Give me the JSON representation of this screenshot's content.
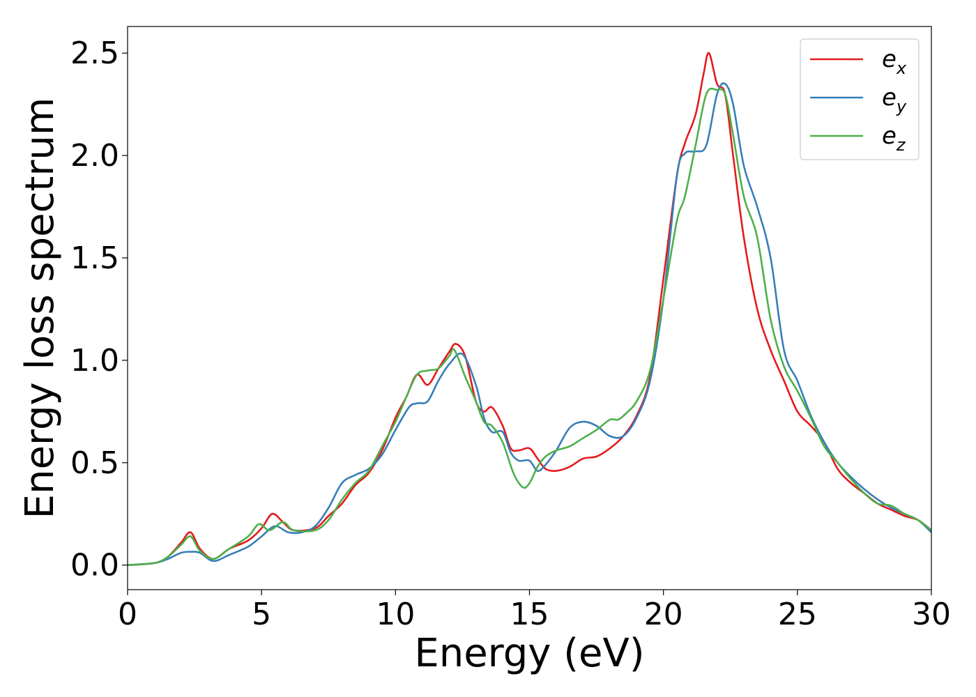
{
  "chart_data": {
    "type": "line",
    "title": "",
    "xlabel": "Energy (eV)",
    "ylabel": "Energy loss spectrum",
    "xlim": [
      0,
      30
    ],
    "ylim": [
      -0.12,
      2.63
    ],
    "xticks": [
      0,
      5,
      10,
      15,
      20,
      25,
      30
    ],
    "xtick_labels": [
      "0",
      "5",
      "10",
      "15",
      "20",
      "25",
      "30"
    ],
    "yticks": [
      0.0,
      0.5,
      1.0,
      1.5,
      2.0,
      2.5
    ],
    "ytick_labels": [
      "0.0",
      "0.5",
      "1.0",
      "1.5",
      "2.0",
      "2.5"
    ],
    "grid": false,
    "legend_position": "top-right",
    "series": [
      {
        "name": "e_x",
        "label_base": "e",
        "label_sub": "x",
        "color": "#e41a1c",
        "x": [
          0,
          1.0,
          1.5,
          2.0,
          2.35,
          2.7,
          3.2,
          3.8,
          4.5,
          5.0,
          5.4,
          5.8,
          6.2,
          7.0,
          7.5,
          8.0,
          8.5,
          9.0,
          9.5,
          10.0,
          10.4,
          10.8,
          11.2,
          11.6,
          12.0,
          12.25,
          12.6,
          13.0,
          13.3,
          13.6,
          14.0,
          14.3,
          14.6,
          15.0,
          15.3,
          15.6,
          16.0,
          16.5,
          17.0,
          17.5,
          18.0,
          18.5,
          19.0,
          19.5,
          20.0,
          20.5,
          20.8,
          21.2,
          21.5,
          21.7,
          22.0,
          22.3,
          22.6,
          23.0,
          23.5,
          24.0,
          24.5,
          25.0,
          25.5,
          26.0,
          26.5,
          27.0,
          27.5,
          28.0,
          28.5,
          29.0,
          29.5,
          30.0
        ],
        "y": [
          0.0,
          0.01,
          0.04,
          0.11,
          0.16,
          0.08,
          0.03,
          0.08,
          0.12,
          0.18,
          0.25,
          0.21,
          0.17,
          0.18,
          0.24,
          0.3,
          0.39,
          0.45,
          0.56,
          0.72,
          0.82,
          0.93,
          0.88,
          0.96,
          1.04,
          1.08,
          1.02,
          0.8,
          0.75,
          0.77,
          0.68,
          0.57,
          0.56,
          0.57,
          0.52,
          0.47,
          0.46,
          0.48,
          0.52,
          0.53,
          0.57,
          0.63,
          0.73,
          0.92,
          1.4,
          1.9,
          2.06,
          2.2,
          2.4,
          2.5,
          2.35,
          2.3,
          2.0,
          1.6,
          1.25,
          1.05,
          0.9,
          0.75,
          0.68,
          0.6,
          0.47,
          0.4,
          0.35,
          0.3,
          0.27,
          0.24,
          0.22,
          0.17
        ]
      },
      {
        "name": "e_y",
        "label_base": "e",
        "label_sub": "y",
        "color": "#377eb8",
        "x": [
          0,
          1.0,
          1.5,
          2.0,
          2.35,
          2.7,
          3.2,
          3.8,
          4.5,
          5.0,
          5.5,
          6.0,
          6.5,
          7.0,
          7.5,
          8.0,
          8.5,
          9.0,
          9.5,
          10.0,
          10.5,
          10.8,
          11.2,
          11.6,
          12.0,
          12.5,
          13.0,
          13.3,
          13.6,
          14.0,
          14.3,
          14.6,
          15.0,
          15.3,
          15.6,
          16.0,
          16.5,
          17.0,
          17.5,
          18.0,
          18.5,
          19.0,
          19.5,
          20.0,
          20.5,
          20.8,
          21.2,
          21.6,
          22.0,
          22.3,
          22.6,
          23.0,
          23.5,
          24.0,
          24.5,
          25.0,
          25.5,
          26.0,
          26.5,
          27.0,
          27.5,
          28.0,
          28.5,
          29.0,
          29.5,
          30.0
        ],
        "y": [
          0.0,
          0.01,
          0.03,
          0.06,
          0.065,
          0.06,
          0.02,
          0.05,
          0.09,
          0.14,
          0.19,
          0.16,
          0.16,
          0.19,
          0.28,
          0.4,
          0.44,
          0.47,
          0.54,
          0.66,
          0.77,
          0.79,
          0.8,
          0.9,
          0.98,
          1.03,
          0.88,
          0.72,
          0.65,
          0.65,
          0.55,
          0.51,
          0.51,
          0.46,
          0.49,
          0.56,
          0.67,
          0.7,
          0.68,
          0.63,
          0.63,
          0.72,
          0.9,
          1.3,
          1.9,
          2.01,
          2.02,
          2.05,
          2.3,
          2.35,
          2.25,
          1.95,
          1.75,
          1.5,
          1.05,
          0.9,
          0.73,
          0.6,
          0.5,
          0.43,
          0.37,
          0.32,
          0.28,
          0.25,
          0.22,
          0.16
        ]
      },
      {
        "name": "e_z",
        "label_base": "e",
        "label_sub": "z",
        "color": "#4daf4a",
        "x": [
          0,
          1.0,
          1.5,
          2.0,
          2.35,
          2.7,
          3.2,
          3.8,
          4.5,
          4.9,
          5.3,
          5.8,
          6.2,
          7.0,
          7.5,
          8.0,
          8.5,
          9.0,
          9.5,
          10.0,
          10.4,
          10.8,
          11.2,
          11.6,
          12.0,
          12.2,
          12.6,
          13.0,
          13.3,
          13.6,
          14.0,
          14.4,
          14.75,
          15.0,
          15.3,
          15.6,
          16.0,
          16.5,
          17.0,
          17.5,
          18.0,
          18.3,
          18.6,
          19.0,
          19.5,
          20.0,
          20.5,
          20.8,
          21.2,
          21.6,
          22.0,
          22.3,
          22.6,
          23.0,
          23.5,
          24.0,
          24.5,
          25.0,
          25.5,
          26.0,
          26.5,
          27.0,
          27.5,
          28.0,
          28.5,
          29.0,
          29.5,
          30.0
        ],
        "y": [
          0.0,
          0.01,
          0.04,
          0.1,
          0.14,
          0.07,
          0.03,
          0.08,
          0.14,
          0.2,
          0.17,
          0.21,
          0.17,
          0.17,
          0.22,
          0.32,
          0.4,
          0.46,
          0.58,
          0.7,
          0.82,
          0.93,
          0.95,
          0.96,
          1.02,
          1.05,
          0.92,
          0.8,
          0.7,
          0.68,
          0.6,
          0.45,
          0.38,
          0.4,
          0.48,
          0.53,
          0.56,
          0.58,
          0.62,
          0.66,
          0.71,
          0.71,
          0.74,
          0.8,
          0.95,
          1.3,
          1.68,
          1.8,
          2.05,
          2.3,
          2.32,
          2.3,
          2.1,
          1.8,
          1.6,
          1.2,
          0.97,
          0.85,
          0.72,
          0.58,
          0.5,
          0.42,
          0.35,
          0.3,
          0.29,
          0.25,
          0.22,
          0.17
        ]
      }
    ]
  }
}
